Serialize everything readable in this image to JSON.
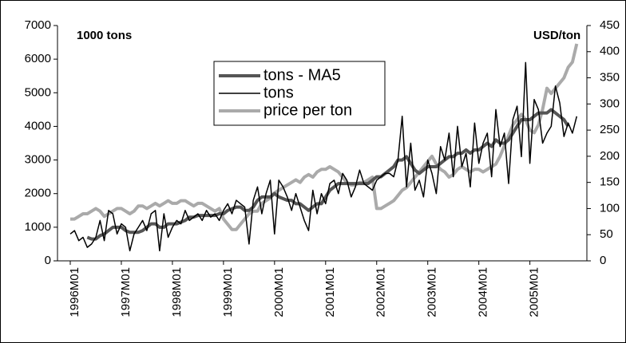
{
  "chart_data": {
    "type": "line",
    "y_label": "1000 tons",
    "y2_label": "USD/ton",
    "categories": [
      "1996M01",
      null,
      null,
      null,
      null,
      null,
      null,
      null,
      null,
      null,
      null,
      null,
      "1997M01",
      null,
      null,
      null,
      null,
      null,
      null,
      null,
      null,
      null,
      null,
      null,
      "1998M01",
      null,
      null,
      null,
      null,
      null,
      null,
      null,
      null,
      null,
      null,
      null,
      "1999M01",
      null,
      null,
      null,
      null,
      null,
      null,
      null,
      null,
      null,
      null,
      null,
      "2000M01",
      null,
      null,
      null,
      null,
      null,
      null,
      null,
      null,
      null,
      null,
      null,
      "2001M01",
      null,
      null,
      null,
      null,
      null,
      null,
      null,
      null,
      null,
      null,
      null,
      "2002M01",
      null,
      null,
      null,
      null,
      null,
      null,
      null,
      null,
      null,
      null,
      null,
      "2003M01",
      null,
      null,
      null,
      null,
      null,
      null,
      null,
      null,
      null,
      null,
      null,
      "2004M01",
      null,
      null,
      null,
      null,
      null,
      null,
      null,
      null,
      null,
      null,
      null,
      "2005M01",
      null,
      null,
      null,
      null,
      null,
      null,
      null,
      null,
      null,
      null,
      null
    ],
    "series": [
      {
        "name": "tons - MA5",
        "color": "#555555",
        "width": 4,
        "values": [
          null,
          null,
          null,
          null,
          700,
          650,
          650,
          750,
          800,
          900,
          1000,
          1000,
          1000,
          900,
          850,
          850,
          850,
          900,
          1000,
          1100,
          1100,
          1000,
          1000,
          1100,
          1100,
          1100,
          1150,
          1200,
          1300,
          1300,
          1350,
          1350,
          1350,
          1350,
          1350,
          1400,
          1400,
          1500,
          1550,
          1600,
          1600,
          1500,
          1500,
          1600,
          1800,
          1900,
          1900,
          1900,
          2000,
          1900,
          1850,
          1800,
          1800,
          1700,
          1700,
          1600,
          1500,
          1600,
          1700,
          1700,
          1900,
          2100,
          2200,
          2300,
          2300,
          2300,
          2300,
          2300,
          2300,
          2300,
          2300,
          2400,
          2500,
          2500,
          2600,
          2700,
          2800,
          3000,
          3000,
          3100,
          2900,
          2700,
          2600,
          2700,
          2800,
          2800,
          2800,
          2900,
          3000,
          3100,
          3100,
          3200,
          3200,
          3300,
          3200,
          3300,
          3300,
          3400,
          3500,
          3400,
          3600,
          3500,
          3500,
          3600,
          3800,
          4000,
          4200,
          4200,
          4200,
          4300,
          4400,
          4400,
          4400,
          4500,
          4400,
          4300,
          4200,
          4000,
          null,
          null
        ]
      },
      {
        "name": "tons",
        "color": "#000000",
        "width": 1.5,
        "values": [
          800,
          900,
          600,
          700,
          400,
          500,
          700,
          1200,
          600,
          1500,
          1400,
          800,
          1100,
          1000,
          300,
          800,
          1000,
          1200,
          900,
          1400,
          1500,
          300,
          1400,
          700,
          1000,
          1200,
          1100,
          1500,
          1200,
          1300,
          1400,
          1200,
          1500,
          1300,
          1400,
          1200,
          1500,
          1700,
          1400,
          1800,
          1700,
          1600,
          500,
          1800,
          2200,
          1400,
          2000,
          2400,
          800,
          2400,
          2200,
          1900,
          1500,
          2000,
          1600,
          1200,
          900,
          2100,
          1400,
          2000,
          1700,
          2300,
          2400,
          2000,
          2600,
          2400,
          1900,
          2200,
          2700,
          2300,
          2200,
          2100,
          2400,
          2500,
          2600,
          2600,
          2500,
          3000,
          4300,
          2200,
          3500,
          2100,
          2400,
          1900,
          3000,
          2600,
          2000,
          3400,
          3000,
          3800,
          2500,
          4000,
          2800,
          3200,
          2200,
          4100,
          2900,
          3500,
          3800,
          2500,
          4500,
          3400,
          3800,
          2300,
          4200,
          4600,
          3100,
          5900,
          2900,
          4800,
          4500,
          3500,
          3800,
          4000,
          5200,
          4700,
          3700,
          4100,
          3800,
          4300
        ]
      },
      {
        "name": "price per ton",
        "color": "#aaaaaa",
        "width": 4,
        "axis": "y2",
        "values": [
          80,
          80,
          85,
          90,
          90,
          95,
          100,
          95,
          85,
          90,
          95,
          100,
          100,
          95,
          90,
          95,
          105,
          105,
          100,
          105,
          110,
          105,
          110,
          115,
          110,
          110,
          115,
          115,
          110,
          105,
          110,
          110,
          105,
          100,
          95,
          100,
          80,
          70,
          60,
          60,
          70,
          80,
          90,
          95,
          95,
          110,
          115,
          120,
          130,
          135,
          140,
          145,
          150,
          155,
          150,
          160,
          165,
          160,
          170,
          175,
          175,
          180,
          175,
          170,
          160,
          150,
          145,
          145,
          150,
          150,
          155,
          160,
          100,
          100,
          105,
          110,
          115,
          125,
          135,
          140,
          150,
          160,
          170,
          180,
          190,
          200,
          185,
          175,
          170,
          160,
          165,
          175,
          180,
          175,
          170,
          175,
          175,
          170,
          175,
          180,
          185,
          200,
          220,
          240,
          260,
          270,
          280,
          270,
          250,
          245,
          260,
          290,
          330,
          320,
          330,
          340,
          350,
          370,
          380,
          415
        ]
      }
    ],
    "ylim": [
      0,
      7000
    ],
    "yticks": [
      0,
      1000,
      2000,
      3000,
      4000,
      5000,
      6000,
      7000
    ],
    "y2lim": [
      0,
      450
    ],
    "y2ticks": [
      0,
      50,
      100,
      150,
      200,
      250,
      300,
      350,
      400,
      450
    ]
  }
}
